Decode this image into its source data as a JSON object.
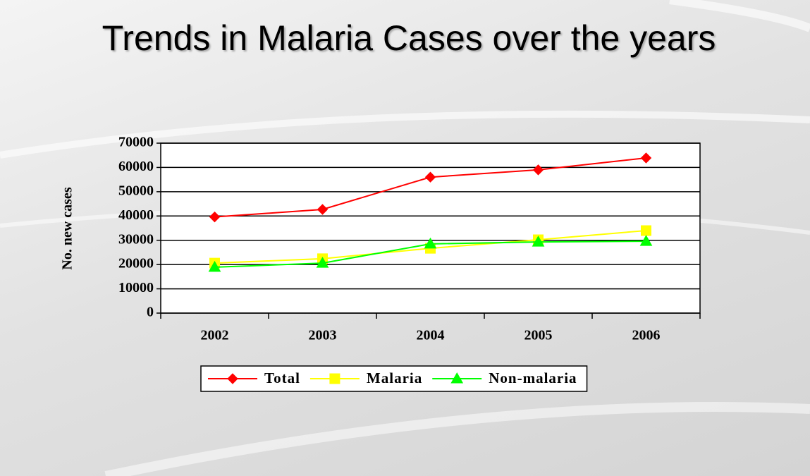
{
  "chart_data": {
    "type": "line",
    "title": "Trends in Malaria Cases over the years",
    "y_label": "No. new cases",
    "categories": [
      "2002",
      "2003",
      "2004",
      "2005",
      "2006"
    ],
    "series": [
      {
        "name": "Total",
        "color": "#ff0000",
        "marker": "diamond",
        "values": [
          39600,
          42700,
          56000,
          59000,
          63900
        ]
      },
      {
        "name": "Malaria",
        "color": "#ffff00",
        "marker": "square",
        "values": [
          20600,
          22400,
          26700,
          30200,
          34000
        ]
      },
      {
        "name": "Non-malaria",
        "color": "#00ff00",
        "marker": "triangle",
        "values": [
          18900,
          20600,
          28500,
          29300,
          29600
        ]
      }
    ],
    "ylim": [
      0,
      70000
    ],
    "yticks": [
      0,
      10000,
      20000,
      30000,
      40000,
      50000,
      60000,
      70000
    ],
    "grid": true,
    "legend": "bottom"
  }
}
